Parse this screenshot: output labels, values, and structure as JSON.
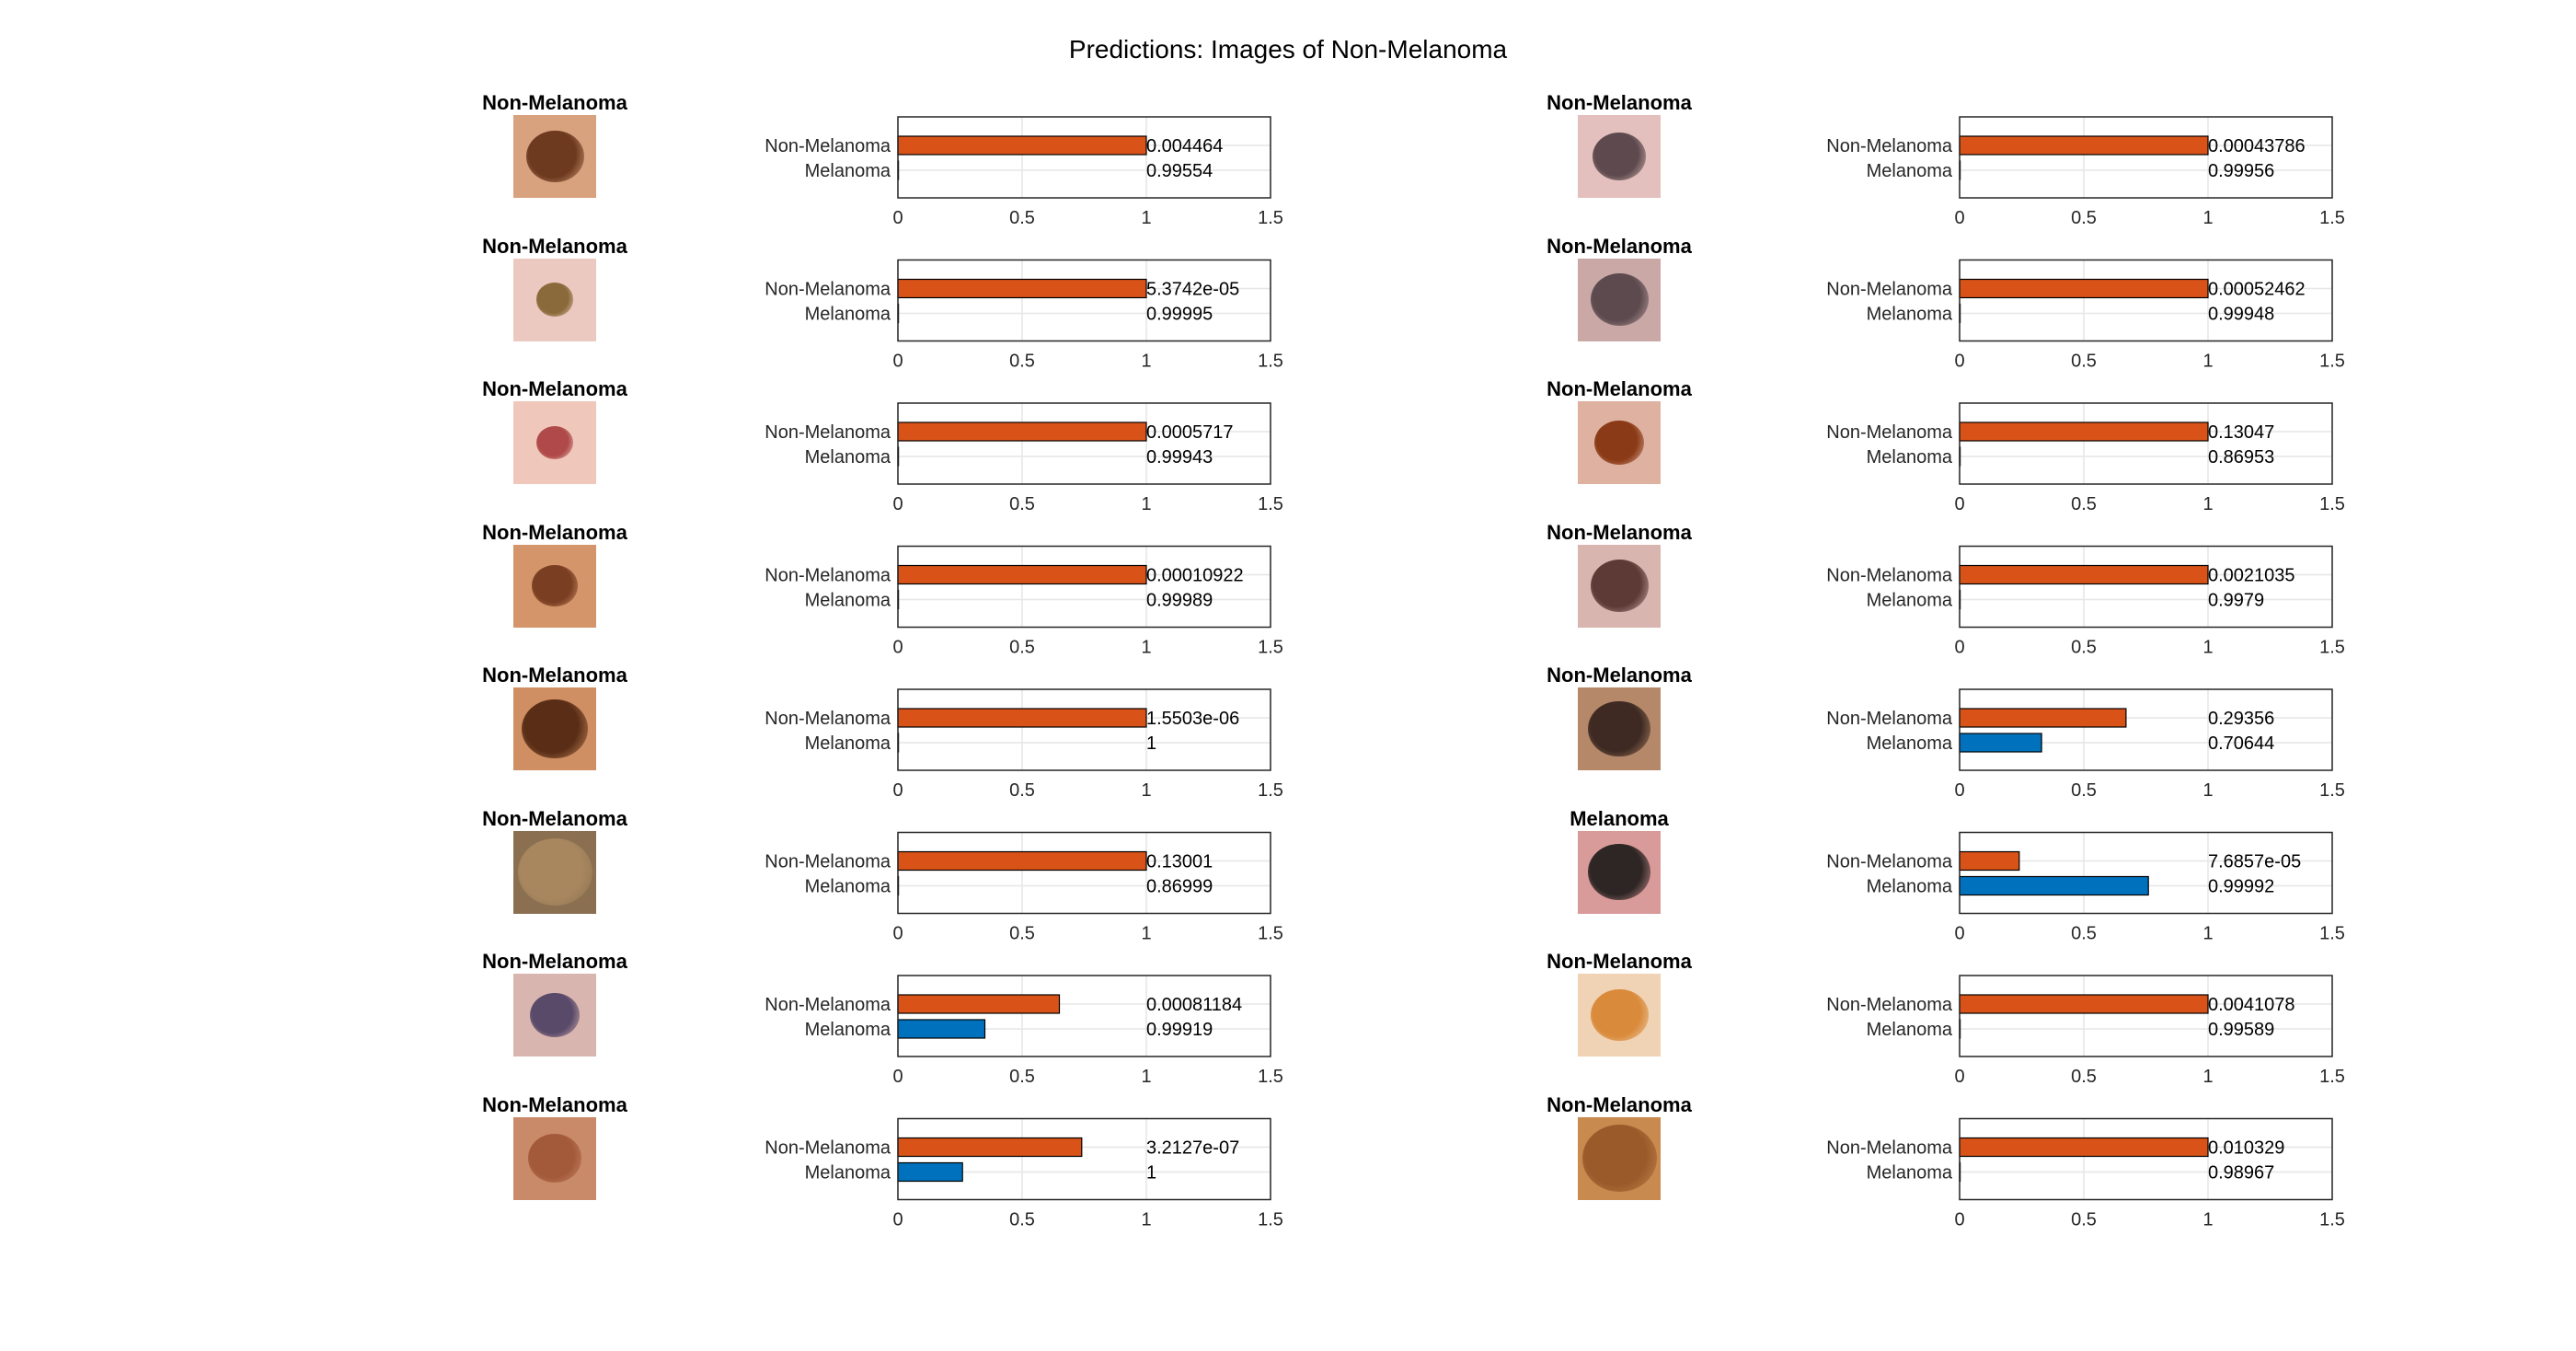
{
  "figure": {
    "title": "Predictions: Images of Non-Melanoma"
  },
  "colors": {
    "non_melanoma_bar": "#D95319",
    "melanoma_bar": "#0072BD",
    "axes_box": "#262626",
    "grid": "#e6e6e6"
  },
  "chart_data": [
    {
      "type": "bar",
      "orientation": "horizontal",
      "image_title": "Non-Melanoma",
      "categories": [
        "Non-Melanoma",
        "Melanoma"
      ],
      "values": [
        1.0,
        0.0
      ],
      "value_labels": [
        "0.004464",
        "0.99554"
      ],
      "xlim": [
        0,
        1.5
      ],
      "xticks": [
        "0",
        "0.5",
        "1",
        "1.5"
      ],
      "grid": true,
      "lesion": {
        "skin": "#d9a27f",
        "mole": "#6e3a1f",
        "size": 0.7
      }
    },
    {
      "type": "bar",
      "orientation": "horizontal",
      "image_title": "Non-Melanoma",
      "categories": [
        "Non-Melanoma",
        "Melanoma"
      ],
      "values": [
        1.0,
        0.0
      ],
      "value_labels": [
        "5.3742e-05",
        "0.99995"
      ],
      "xlim": [
        0,
        1.5
      ],
      "xticks": [
        "0",
        "0.5",
        "1",
        "1.5"
      ],
      "grid": true,
      "lesion": {
        "skin": "#ecc9c0",
        "mole": "#8a6a3a",
        "size": 0.45
      }
    },
    {
      "type": "bar",
      "orientation": "horizontal",
      "image_title": "Non-Melanoma",
      "categories": [
        "Non-Melanoma",
        "Melanoma"
      ],
      "values": [
        1.0,
        0.0
      ],
      "value_labels": [
        "0.0005717",
        "0.99943"
      ],
      "xlim": [
        0,
        1.5
      ],
      "xticks": [
        "0",
        "0.5",
        "1",
        "1.5"
      ],
      "grid": true,
      "lesion": {
        "skin": "#efc8bb",
        "mole": "#b04a4a",
        "size": 0.45
      }
    },
    {
      "type": "bar",
      "orientation": "horizontal",
      "image_title": "Non-Melanoma",
      "categories": [
        "Non-Melanoma",
        "Melanoma"
      ],
      "values": [
        1.0,
        0.0
      ],
      "value_labels": [
        "0.00010922",
        "0.99989"
      ],
      "xlim": [
        0,
        1.5
      ],
      "xticks": [
        "0",
        "0.5",
        "1",
        "1.5"
      ],
      "grid": true,
      "lesion": {
        "skin": "#d4956a",
        "mole": "#7a3e22",
        "size": 0.55
      }
    },
    {
      "type": "bar",
      "orientation": "horizontal",
      "image_title": "Non-Melanoma",
      "categories": [
        "Non-Melanoma",
        "Melanoma"
      ],
      "values": [
        1.0,
        0.0
      ],
      "value_labels": [
        "1.5503e-06",
        "1"
      ],
      "xlim": [
        0,
        1.5
      ],
      "xticks": [
        "0",
        "0.5",
        "1",
        "1.5"
      ],
      "grid": true,
      "lesion": {
        "skin": "#cf8f63",
        "mole": "#5a2e16",
        "size": 0.8
      }
    },
    {
      "type": "bar",
      "orientation": "horizontal",
      "image_title": "Non-Melanoma",
      "categories": [
        "Non-Melanoma",
        "Melanoma"
      ],
      "values": [
        1.0,
        0.0
      ],
      "value_labels": [
        "0.13001",
        "0.86999"
      ],
      "xlim": [
        0,
        1.5
      ],
      "xticks": [
        "0",
        "0.5",
        "1",
        "1.5"
      ],
      "grid": true,
      "lesion": {
        "skin": "#8a7050",
        "mole": "#a8875f",
        "size": 0.9
      }
    },
    {
      "type": "bar",
      "orientation": "horizontal",
      "image_title": "Non-Melanoma",
      "categories": [
        "Non-Melanoma",
        "Melanoma"
      ],
      "values": [
        0.65,
        0.35
      ],
      "value_labels": [
        "0.00081184",
        "0.99919"
      ],
      "xlim": [
        0,
        1.5
      ],
      "xticks": [
        "0",
        "0.5",
        "1",
        "1.5"
      ],
      "grid": true,
      "lesion": {
        "skin": "#d9b5b0",
        "mole": "#5a4a6a",
        "size": 0.6
      }
    },
    {
      "type": "bar",
      "orientation": "horizontal",
      "image_title": "Non-Melanoma",
      "categories": [
        "Non-Melanoma",
        "Melanoma"
      ],
      "values": [
        0.74,
        0.26
      ],
      "value_labels": [
        "3.2127e-07",
        "1"
      ],
      "xlim": [
        0,
        1.5
      ],
      "xticks": [
        "0",
        "0.5",
        "1",
        "1.5"
      ],
      "grid": true,
      "lesion": {
        "skin": "#c98a6a",
        "mole": "#a35a3a",
        "size": 0.65
      }
    },
    {
      "type": "bar",
      "orientation": "horizontal",
      "image_title": "Non-Melanoma",
      "categories": [
        "Non-Melanoma",
        "Melanoma"
      ],
      "values": [
        1.0,
        0.0
      ],
      "value_labels": [
        "0.00043786",
        "0.99956"
      ],
      "xlim": [
        0,
        1.5
      ],
      "xticks": [
        "0",
        "0.5",
        "1",
        "1.5"
      ],
      "grid": true,
      "lesion": {
        "skin": "#e3c0bd",
        "mole": "#5e4a4e",
        "size": 0.65
      }
    },
    {
      "type": "bar",
      "orientation": "horizontal",
      "image_title": "Non-Melanoma",
      "categories": [
        "Non-Melanoma",
        "Melanoma"
      ],
      "values": [
        1.0,
        0.0
      ],
      "value_labels": [
        "0.00052462",
        "0.99948"
      ],
      "xlim": [
        0,
        1.5
      ],
      "xticks": [
        "0",
        "0.5",
        "1",
        "1.5"
      ],
      "grid": true,
      "lesion": {
        "skin": "#c9a8a6",
        "mole": "#5c4a4e",
        "size": 0.7
      }
    },
    {
      "type": "bar",
      "orientation": "horizontal",
      "image_title": "Non-Melanoma",
      "categories": [
        "Non-Melanoma",
        "Melanoma"
      ],
      "values": [
        1.0,
        0.0
      ],
      "value_labels": [
        "0.13047",
        "0.86953"
      ],
      "xlim": [
        0,
        1.5
      ],
      "xticks": [
        "0",
        "0.5",
        "1",
        "1.5"
      ],
      "grid": true,
      "lesion": {
        "skin": "#deb1a0",
        "mole": "#8a3a16",
        "size": 0.6
      }
    },
    {
      "type": "bar",
      "orientation": "horizontal",
      "image_title": "Non-Melanoma",
      "categories": [
        "Non-Melanoma",
        "Melanoma"
      ],
      "values": [
        1.0,
        0.0
      ],
      "value_labels": [
        "0.0021035",
        "0.9979"
      ],
      "xlim": [
        0,
        1.5
      ],
      "xticks": [
        "0",
        "0.5",
        "1",
        "1.5"
      ],
      "grid": true,
      "lesion": {
        "skin": "#d9b5b0",
        "mole": "#5e3a36",
        "size": 0.7
      }
    },
    {
      "type": "bar",
      "orientation": "horizontal",
      "image_title": "Non-Melanoma",
      "categories": [
        "Non-Melanoma",
        "Melanoma"
      ],
      "values": [
        0.67,
        0.33
      ],
      "value_labels": [
        "0.29356",
        "0.70644"
      ],
      "xlim": [
        0,
        1.5
      ],
      "xticks": [
        "0",
        "0.5",
        "1",
        "1.5"
      ],
      "grid": true,
      "lesion": {
        "skin": "#b5886a",
        "mole": "#3e2a22",
        "size": 0.75
      }
    },
    {
      "type": "bar",
      "orientation": "horizontal",
      "image_title": "Melanoma",
      "categories": [
        "Non-Melanoma",
        "Melanoma"
      ],
      "values": [
        0.24,
        0.76
      ],
      "value_labels": [
        "7.6857e-05",
        "0.99992"
      ],
      "xlim": [
        0,
        1.5
      ],
      "xticks": [
        "0",
        "0.5",
        "1",
        "1.5"
      ],
      "grid": true,
      "lesion": {
        "skin": "#d99a9a",
        "mole": "#2e2624",
        "size": 0.75
      }
    },
    {
      "type": "bar",
      "orientation": "horizontal",
      "image_title": "Non-Melanoma",
      "categories": [
        "Non-Melanoma",
        "Melanoma"
      ],
      "values": [
        1.0,
        0.0
      ],
      "value_labels": [
        "0.0041078",
        "0.99589"
      ],
      "xlim": [
        0,
        1.5
      ],
      "xticks": [
        "0",
        "0.5",
        "1",
        "1.5"
      ],
      "grid": true,
      "lesion": {
        "skin": "#f0d2b4",
        "mole": "#d98a3a",
        "size": 0.7
      }
    },
    {
      "type": "bar",
      "orientation": "horizontal",
      "image_title": "Non-Melanoma",
      "categories": [
        "Non-Melanoma",
        "Melanoma"
      ],
      "values": [
        1.0,
        0.0
      ],
      "value_labels": [
        "0.010329",
        "0.98967"
      ],
      "xlim": [
        0,
        1.5
      ],
      "xticks": [
        "0",
        "0.5",
        "1",
        "1.5"
      ],
      "grid": true,
      "lesion": {
        "skin": "#c98a50",
        "mole": "#9a5a2a",
        "size": 0.9
      }
    }
  ]
}
